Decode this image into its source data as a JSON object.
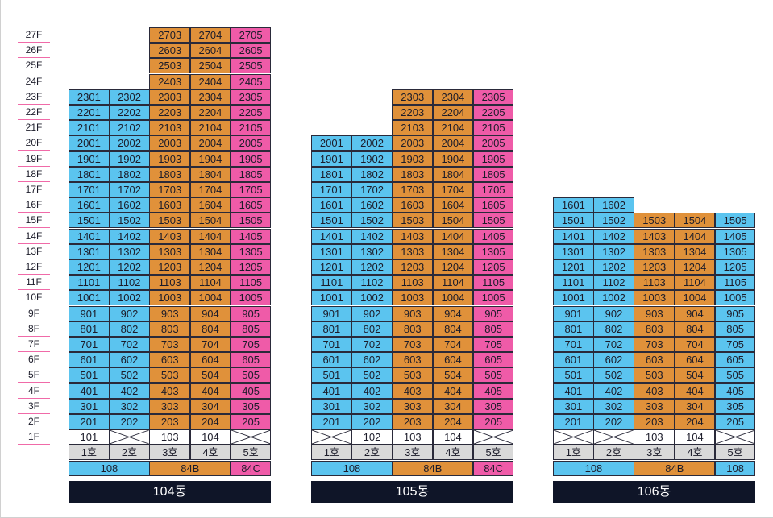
{
  "floor_labels": [
    "27F",
    "26F",
    "25F",
    "24F",
    "23F",
    "22F",
    "21F",
    "20F",
    "19F",
    "18F",
    "17F",
    "16F",
    "15F",
    "14F",
    "13F",
    "12F",
    "11F",
    "10F",
    "9F",
    "8F",
    "7F",
    "6F",
    "5F",
    "4F",
    "3F",
    "2F",
    "1F"
  ],
  "colors": {
    "blue": "#5bc4ef",
    "orange": "#e0913a",
    "pink": "#ef5ba8",
    "header_bg": "#0f1528",
    "ho_bg": "#d9d9d9"
  },
  "buildings": [
    {
      "name": "104동",
      "ho_labels": [
        "1호",
        "2호",
        "3호",
        "4호",
        "5호"
      ],
      "col_colors": [
        "blue",
        "blue",
        "orange",
        "orange",
        "pink"
      ],
      "col_top_floor": [
        23,
        23,
        27,
        27,
        27
      ],
      "first_floor": [
        "101",
        "",
        "103",
        "104",
        ""
      ],
      "types": [
        {
          "label": "108",
          "span": 2,
          "color": "blue"
        },
        {
          "label": "84B",
          "span": 2,
          "color": "orange"
        },
        {
          "label": "84C",
          "span": 1,
          "color": "pink"
        }
      ]
    },
    {
      "name": "105동",
      "ho_labels": [
        "1호",
        "2호",
        "3호",
        "4호",
        "5호"
      ],
      "col_colors": [
        "blue",
        "blue",
        "orange",
        "orange",
        "pink"
      ],
      "col_top_floor": [
        20,
        20,
        23,
        23,
        23
      ],
      "first_floor": [
        "",
        "102",
        "103",
        "104",
        ""
      ],
      "types": [
        {
          "label": "108",
          "span": 2,
          "color": "blue"
        },
        {
          "label": "84B",
          "span": 2,
          "color": "orange"
        },
        {
          "label": "84C",
          "span": 1,
          "color": "pink"
        }
      ]
    },
    {
      "name": "106동",
      "ho_labels": [
        "1호",
        "2호",
        "3호",
        "4호",
        "5호"
      ],
      "col_colors": [
        "blue",
        "blue",
        "orange",
        "orange",
        "blue"
      ],
      "col_top_floor": [
        16,
        16,
        15,
        15,
        15
      ],
      "first_floor": [
        "",
        "",
        "103",
        "104",
        ""
      ],
      "types": [
        {
          "label": "108",
          "span": 2,
          "color": "blue"
        },
        {
          "label": "84B",
          "span": 2,
          "color": "orange"
        },
        {
          "label": "108",
          "span": 1,
          "color": "blue"
        }
      ]
    }
  ]
}
